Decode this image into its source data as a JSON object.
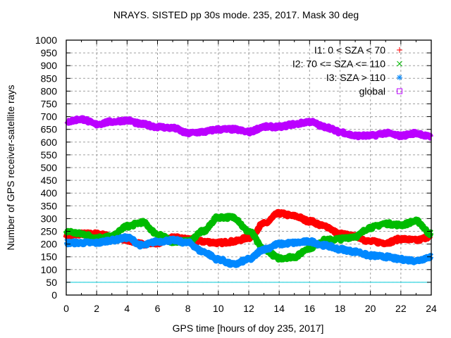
{
  "chart_data": {
    "type": "line",
    "title": "NRAYS. SISTED pp 30s mode. 235, 2017. Mask 30 deg",
    "xlabel": "GPS time [hours of doy 235, 2017]",
    "ylabel": "Number of GPS receiver-satellite rays",
    "xlim": [
      0,
      24
    ],
    "ylim": [
      0,
      1000
    ],
    "xticks": [
      "0",
      "2",
      "4",
      "6",
      "8",
      "10",
      "12",
      "14",
      "16",
      "18",
      "20",
      "22",
      "24"
    ],
    "yticks": [
      "0",
      "50",
      "100",
      "150",
      "200",
      "250",
      "300",
      "350",
      "400",
      "450",
      "500",
      "550",
      "600",
      "650",
      "700",
      "750",
      "800",
      "850",
      "900",
      "950",
      "1000"
    ],
    "grid": true,
    "legend_position": "top-right",
    "x": [
      0,
      1,
      2,
      3,
      4,
      5,
      6,
      7,
      8,
      9,
      10,
      11,
      12,
      13,
      14,
      15,
      16,
      17,
      18,
      19,
      20,
      21,
      22,
      23,
      24
    ],
    "series": [
      {
        "name": "I1: 0 < SZA < 70",
        "marker": "+",
        "color": "#ff0000",
        "values": [
          230,
          240,
          240,
          230,
          215,
          200,
          205,
          225,
          220,
          210,
          205,
          210,
          225,
          280,
          320,
          310,
          290,
          270,
          240,
          230,
          210,
          205,
          220,
          215,
          230
        ]
      },
      {
        "name": "I2: 70 <= SZA <= 110",
        "marker": "x",
        "color": "#00bb00",
        "values": [
          250,
          240,
          225,
          230,
          270,
          285,
          240,
          210,
          210,
          250,
          305,
          305,
          250,
          180,
          145,
          150,
          185,
          215,
          220,
          230,
          265,
          280,
          275,
          290,
          240
        ]
      },
      {
        "name": "I3: SZA > 110",
        "marker": "*",
        "color": "#0088ff",
        "values": [
          205,
          205,
          205,
          215,
          225,
          195,
          210,
          215,
          205,
          170,
          140,
          120,
          140,
          180,
          200,
          205,
          210,
          195,
          180,
          170,
          155,
          150,
          140,
          135,
          150
        ]
      },
      {
        "name": "global",
        "marker": "square",
        "color": "#bb00ff",
        "values": [
          680,
          690,
          670,
          680,
          685,
          670,
          660,
          655,
          635,
          640,
          650,
          650,
          640,
          660,
          660,
          670,
          680,
          660,
          640,
          625,
          625,
          635,
          625,
          635,
          620
        ]
      }
    ],
    "reference_line": {
      "value": 50,
      "color": "#33d6e0"
    }
  }
}
